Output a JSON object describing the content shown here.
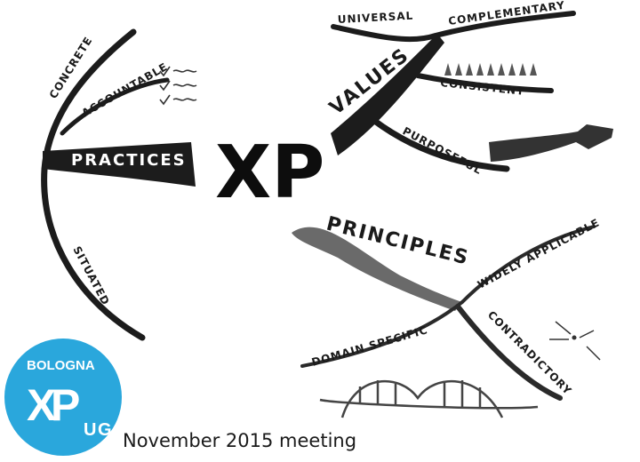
{
  "center": "XP",
  "practices": {
    "title": "PRACTICES",
    "items": [
      "CONCRETE",
      "ACCOUNTABLE",
      "SITUATED"
    ]
  },
  "values": {
    "title": "VALUES",
    "items": [
      "UNIVERSAL",
      "COMPLEMENTARY",
      "CONSISTENT",
      "PURPOSEFUL"
    ]
  },
  "principles": {
    "title": "PRINCIPLES",
    "items": [
      "WIDELY APPLICABLE",
      "DOMAIN SPECIFIC",
      "CONTRADICTORY"
    ]
  },
  "logo": {
    "city": "BOLOGNA",
    "letters": [
      "X",
      "P",
      "U",
      "G"
    ],
    "color": "#2aa7dc"
  },
  "caption": "November 2015 meeting"
}
